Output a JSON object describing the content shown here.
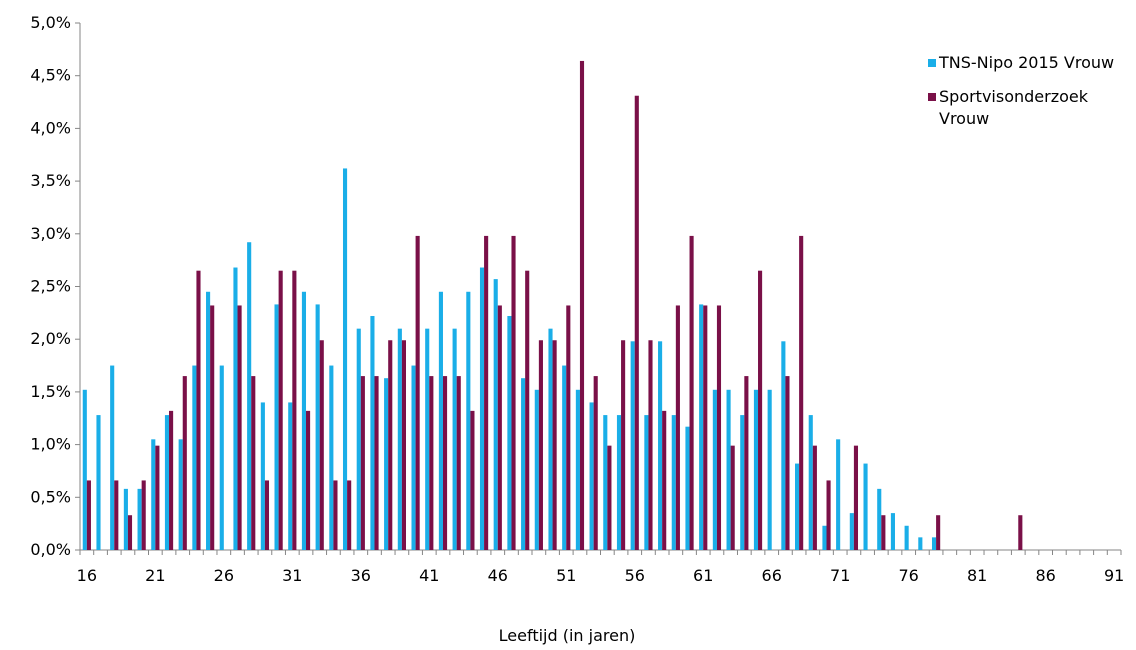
{
  "chart_data": {
    "type": "bar",
    "xlabel": "Leeftijd (in jaren)",
    "x_tick_labels": [
      "16",
      "21",
      "26",
      "31",
      "36",
      "41",
      "46",
      "51",
      "56",
      "61",
      "66",
      "71",
      "76",
      "81",
      "86",
      "91"
    ],
    "y_tick_labels": [
      "0,0%",
      "0,5%",
      "1,0%",
      "1,5%",
      "2,0%",
      "2,5%",
      "3,0%",
      "3,5%",
      "4,0%",
      "4,5%",
      "5,0%"
    ],
    "ylim": [
      0,
      5.0
    ],
    "legend_position": "top-right",
    "ages": [
      16,
      17,
      18,
      19,
      20,
      21,
      22,
      23,
      24,
      25,
      26,
      27,
      28,
      29,
      30,
      31,
      32,
      33,
      34,
      35,
      36,
      37,
      38,
      39,
      40,
      41,
      42,
      43,
      44,
      45,
      46,
      47,
      48,
      49,
      50,
      51,
      52,
      53,
      54,
      55,
      56,
      57,
      58,
      59,
      60,
      61,
      62,
      63,
      64,
      65,
      66,
      67,
      68,
      69,
      70,
      71,
      72,
      73,
      74,
      75,
      76,
      77,
      78,
      79,
      80,
      81,
      82,
      83,
      84,
      85,
      86,
      87,
      88,
      89,
      90,
      91
    ],
    "series": [
      {
        "name": "TNS-Nipo 2015 Vrouw",
        "color": "#1aaee8",
        "values": [
          1.52,
          1.28,
          1.75,
          0.58,
          0.58,
          1.05,
          1.28,
          1.05,
          1.75,
          2.45,
          1.75,
          2.68,
          2.92,
          1.4,
          2.33,
          1.4,
          2.45,
          2.33,
          1.75,
          3.62,
          2.1,
          2.22,
          1.63,
          2.1,
          1.75,
          2.1,
          2.45,
          2.1,
          2.45,
          2.68,
          2.57,
          2.22,
          1.63,
          1.52,
          2.1,
          1.75,
          1.52,
          1.4,
          1.28,
          1.28,
          1.98,
          1.28,
          1.98,
          1.28,
          1.17,
          2.33,
          1.52,
          1.52,
          1.28,
          1.52,
          1.52,
          1.98,
          0.82,
          1.28,
          0.23,
          1.05,
          0.35,
          0.82,
          0.58,
          0.35,
          0.23,
          0.12,
          0.12,
          0,
          0,
          0,
          0,
          0,
          0,
          0,
          0,
          0,
          0,
          0,
          0,
          0
        ]
      },
      {
        "name": "Sportvisonderzoek Vrouw",
        "color": "#7a1048",
        "values": [
          0.66,
          0,
          0.66,
          0.33,
          0.66,
          0.99,
          1.32,
          1.65,
          2.65,
          2.32,
          0,
          2.32,
          1.65,
          0.66,
          2.65,
          2.65,
          1.32,
          1.99,
          0.66,
          0.66,
          1.65,
          1.65,
          1.99,
          1.99,
          2.98,
          1.65,
          1.65,
          1.65,
          1.32,
          2.98,
          2.32,
          2.98,
          2.65,
          1.99,
          1.99,
          2.32,
          4.64,
          1.65,
          0.99,
          1.99,
          4.31,
          1.99,
          1.32,
          2.32,
          2.98,
          2.32,
          2.32,
          0.99,
          1.65,
          2.65,
          0,
          1.65,
          2.98,
          0.99,
          0.66,
          0,
          0.99,
          0,
          0.33,
          0,
          0,
          0,
          0.33,
          0,
          0,
          0,
          0,
          0,
          0.33,
          0,
          0,
          0,
          0,
          0,
          0,
          0
        ]
      }
    ]
  }
}
